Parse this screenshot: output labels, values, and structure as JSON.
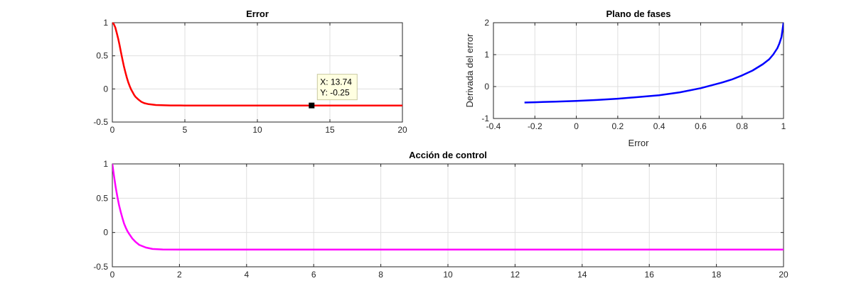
{
  "figure": {
    "background": "#ffffff",
    "axes_background": "#ffffff",
    "grid_color": "#dfdfdf",
    "axis_color": "#262626"
  },
  "chart_data": [
    {
      "id": "error",
      "type": "line",
      "title": "Error",
      "xlabel": "",
      "ylabel": "",
      "xlim": [
        0,
        20
      ],
      "ylim": [
        -0.5,
        1
      ],
      "xticks": [
        0,
        5,
        10,
        15,
        20
      ],
      "yticks": [
        -0.5,
        0,
        0.5,
        1
      ],
      "grid": true,
      "series": [
        {
          "color": "#ff0000",
          "x": [
            0,
            0.1,
            0.2,
            0.3,
            0.4,
            0.5,
            0.6,
            0.7,
            0.8,
            0.9,
            1.0,
            1.1,
            1.2,
            1.3,
            1.4,
            1.5,
            1.6,
            1.8,
            2.0,
            2.2,
            2.5,
            3.0,
            4.0,
            5.0,
            8.0,
            12.0,
            16.0,
            20.0
          ],
          "y": [
            1.0,
            0.98,
            0.93,
            0.85,
            0.76,
            0.66,
            0.55,
            0.44,
            0.34,
            0.25,
            0.17,
            0.1,
            0.04,
            -0.01,
            -0.05,
            -0.09,
            -0.12,
            -0.16,
            -0.195,
            -0.215,
            -0.23,
            -0.243,
            -0.249,
            -0.25,
            -0.25,
            -0.25,
            -0.25,
            -0.25
          ]
        }
      ],
      "datatip": {
        "x": 13.74,
        "y": -0.25,
        "x_text": "X: 13.74",
        "y_text": "Y: -0.25"
      }
    },
    {
      "id": "phase",
      "type": "line",
      "title": "Plano de fases",
      "xlabel": "Error",
      "ylabel": "Derivada del error",
      "xlim": [
        -0.4,
        1
      ],
      "ylim": [
        -1,
        2
      ],
      "xticks": [
        -0.4,
        -0.2,
        0,
        0.2,
        0.4,
        0.6,
        0.8,
        1
      ],
      "yticks": [
        -1,
        0,
        1,
        2
      ],
      "grid": true,
      "series": [
        {
          "color": "#0000ff",
          "x": [
            -0.25,
            -0.2,
            -0.1,
            0.0,
            0.1,
            0.2,
            0.3,
            0.4,
            0.5,
            0.6,
            0.7,
            0.75,
            0.8,
            0.85,
            0.9,
            0.93,
            0.95,
            0.97,
            0.98,
            0.99,
            1.0
          ],
          "y": [
            -0.5,
            -0.49,
            -0.47,
            -0.45,
            -0.42,
            -0.38,
            -0.33,
            -0.27,
            -0.18,
            -0.05,
            0.12,
            0.22,
            0.35,
            0.5,
            0.7,
            0.85,
            1.0,
            1.2,
            1.35,
            1.55,
            2.0
          ]
        }
      ]
    },
    {
      "id": "control",
      "type": "line",
      "title": "Acción de control",
      "xlabel": "",
      "ylabel": "",
      "xlim": [
        0,
        20
      ],
      "ylim": [
        -0.5,
        1
      ],
      "xticks": [
        0,
        2,
        4,
        6,
        8,
        10,
        12,
        14,
        16,
        18,
        20
      ],
      "yticks": [
        -0.5,
        0,
        0.5,
        1
      ],
      "grid": true,
      "series": [
        {
          "color": "#ff00ff",
          "x": [
            0,
            0.05,
            0.1,
            0.15,
            0.2,
            0.25,
            0.3,
            0.35,
            0.4,
            0.45,
            0.5,
            0.6,
            0.7,
            0.8,
            0.9,
            1.0,
            1.2,
            1.5,
            2.0,
            3.0,
            5.0,
            10.0,
            15.0,
            20.0
          ],
          "y": [
            1.0,
            0.82,
            0.66,
            0.52,
            0.4,
            0.3,
            0.21,
            0.13,
            0.07,
            0.02,
            -0.02,
            -0.09,
            -0.14,
            -0.18,
            -0.2,
            -0.22,
            -0.24,
            -0.248,
            -0.25,
            -0.25,
            -0.25,
            -0.25,
            -0.25,
            -0.25
          ]
        }
      ]
    }
  ]
}
